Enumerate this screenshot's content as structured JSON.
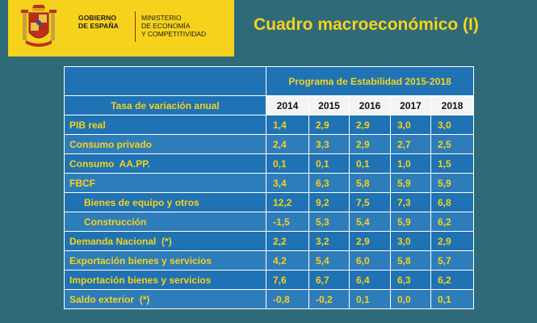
{
  "header": {
    "gov_line1": "GOBIERNO",
    "gov_line2": "DE ESPAÑA",
    "ministry_line1": "MINISTERIO",
    "ministry_line2": "DE ECONOMÍA",
    "ministry_line3": "Y COMPETITIVIDAD",
    "title": "Cuadro macroeconómico (I)"
  },
  "colors": {
    "background": "#2f6a78",
    "header_yellow": "#f6d21c",
    "table_blue": "#1f73b5",
    "text_yellow": "#f6d21c"
  },
  "table": {
    "program_label": "Programa de Estabilidad 2015-2018",
    "rate_label": "Tasa de variación anual",
    "years": [
      "2014",
      "2015",
      "2016",
      "2017",
      "2018"
    ],
    "rows": [
      {
        "label": "PIB real",
        "values": [
          "1,4",
          "2,9",
          "2,9",
          "3,0",
          "3,0"
        ]
      },
      {
        "label": "Consumo privado",
        "values": [
          "2,4",
          "3,3",
          "2,9",
          "2,7",
          "2,5"
        ]
      },
      {
        "label": "Consumo  AA.PP.",
        "values": [
          "0,1",
          "0,1",
          "0,1",
          "1,0",
          "1,5"
        ]
      },
      {
        "label": "FBCF",
        "values": [
          "3,4",
          "6,3",
          "5,8",
          "5,9",
          "5,9"
        ]
      },
      {
        "label": "Bienes de equipo y otros",
        "values": [
          "12,2",
          "9,2",
          "7,5",
          "7,3",
          "6,8"
        ]
      },
      {
        "label": "Construcción",
        "values": [
          "-1,5",
          "5,3",
          "5,4",
          "5,9",
          "6,2"
        ]
      },
      {
        "label": "Demanda Nacional  (*)",
        "values": [
          "2,2",
          "3,2",
          "2,9",
          "3,0",
          "2,9"
        ]
      },
      {
        "label": "Exportación bienes y servicios",
        "values": [
          "4,2",
          "5,4",
          "6,0",
          "5,8",
          "5,7"
        ]
      },
      {
        "label": "Importación bienes y servicios",
        "values": [
          "7,6",
          "6,7",
          "6,4",
          "6,3",
          "6,2"
        ]
      },
      {
        "label": "Saldo exterior  (*)",
        "values": [
          "-0,8",
          "-0,2",
          "0,1",
          "0,0",
          "0,1"
        ]
      }
    ]
  }
}
